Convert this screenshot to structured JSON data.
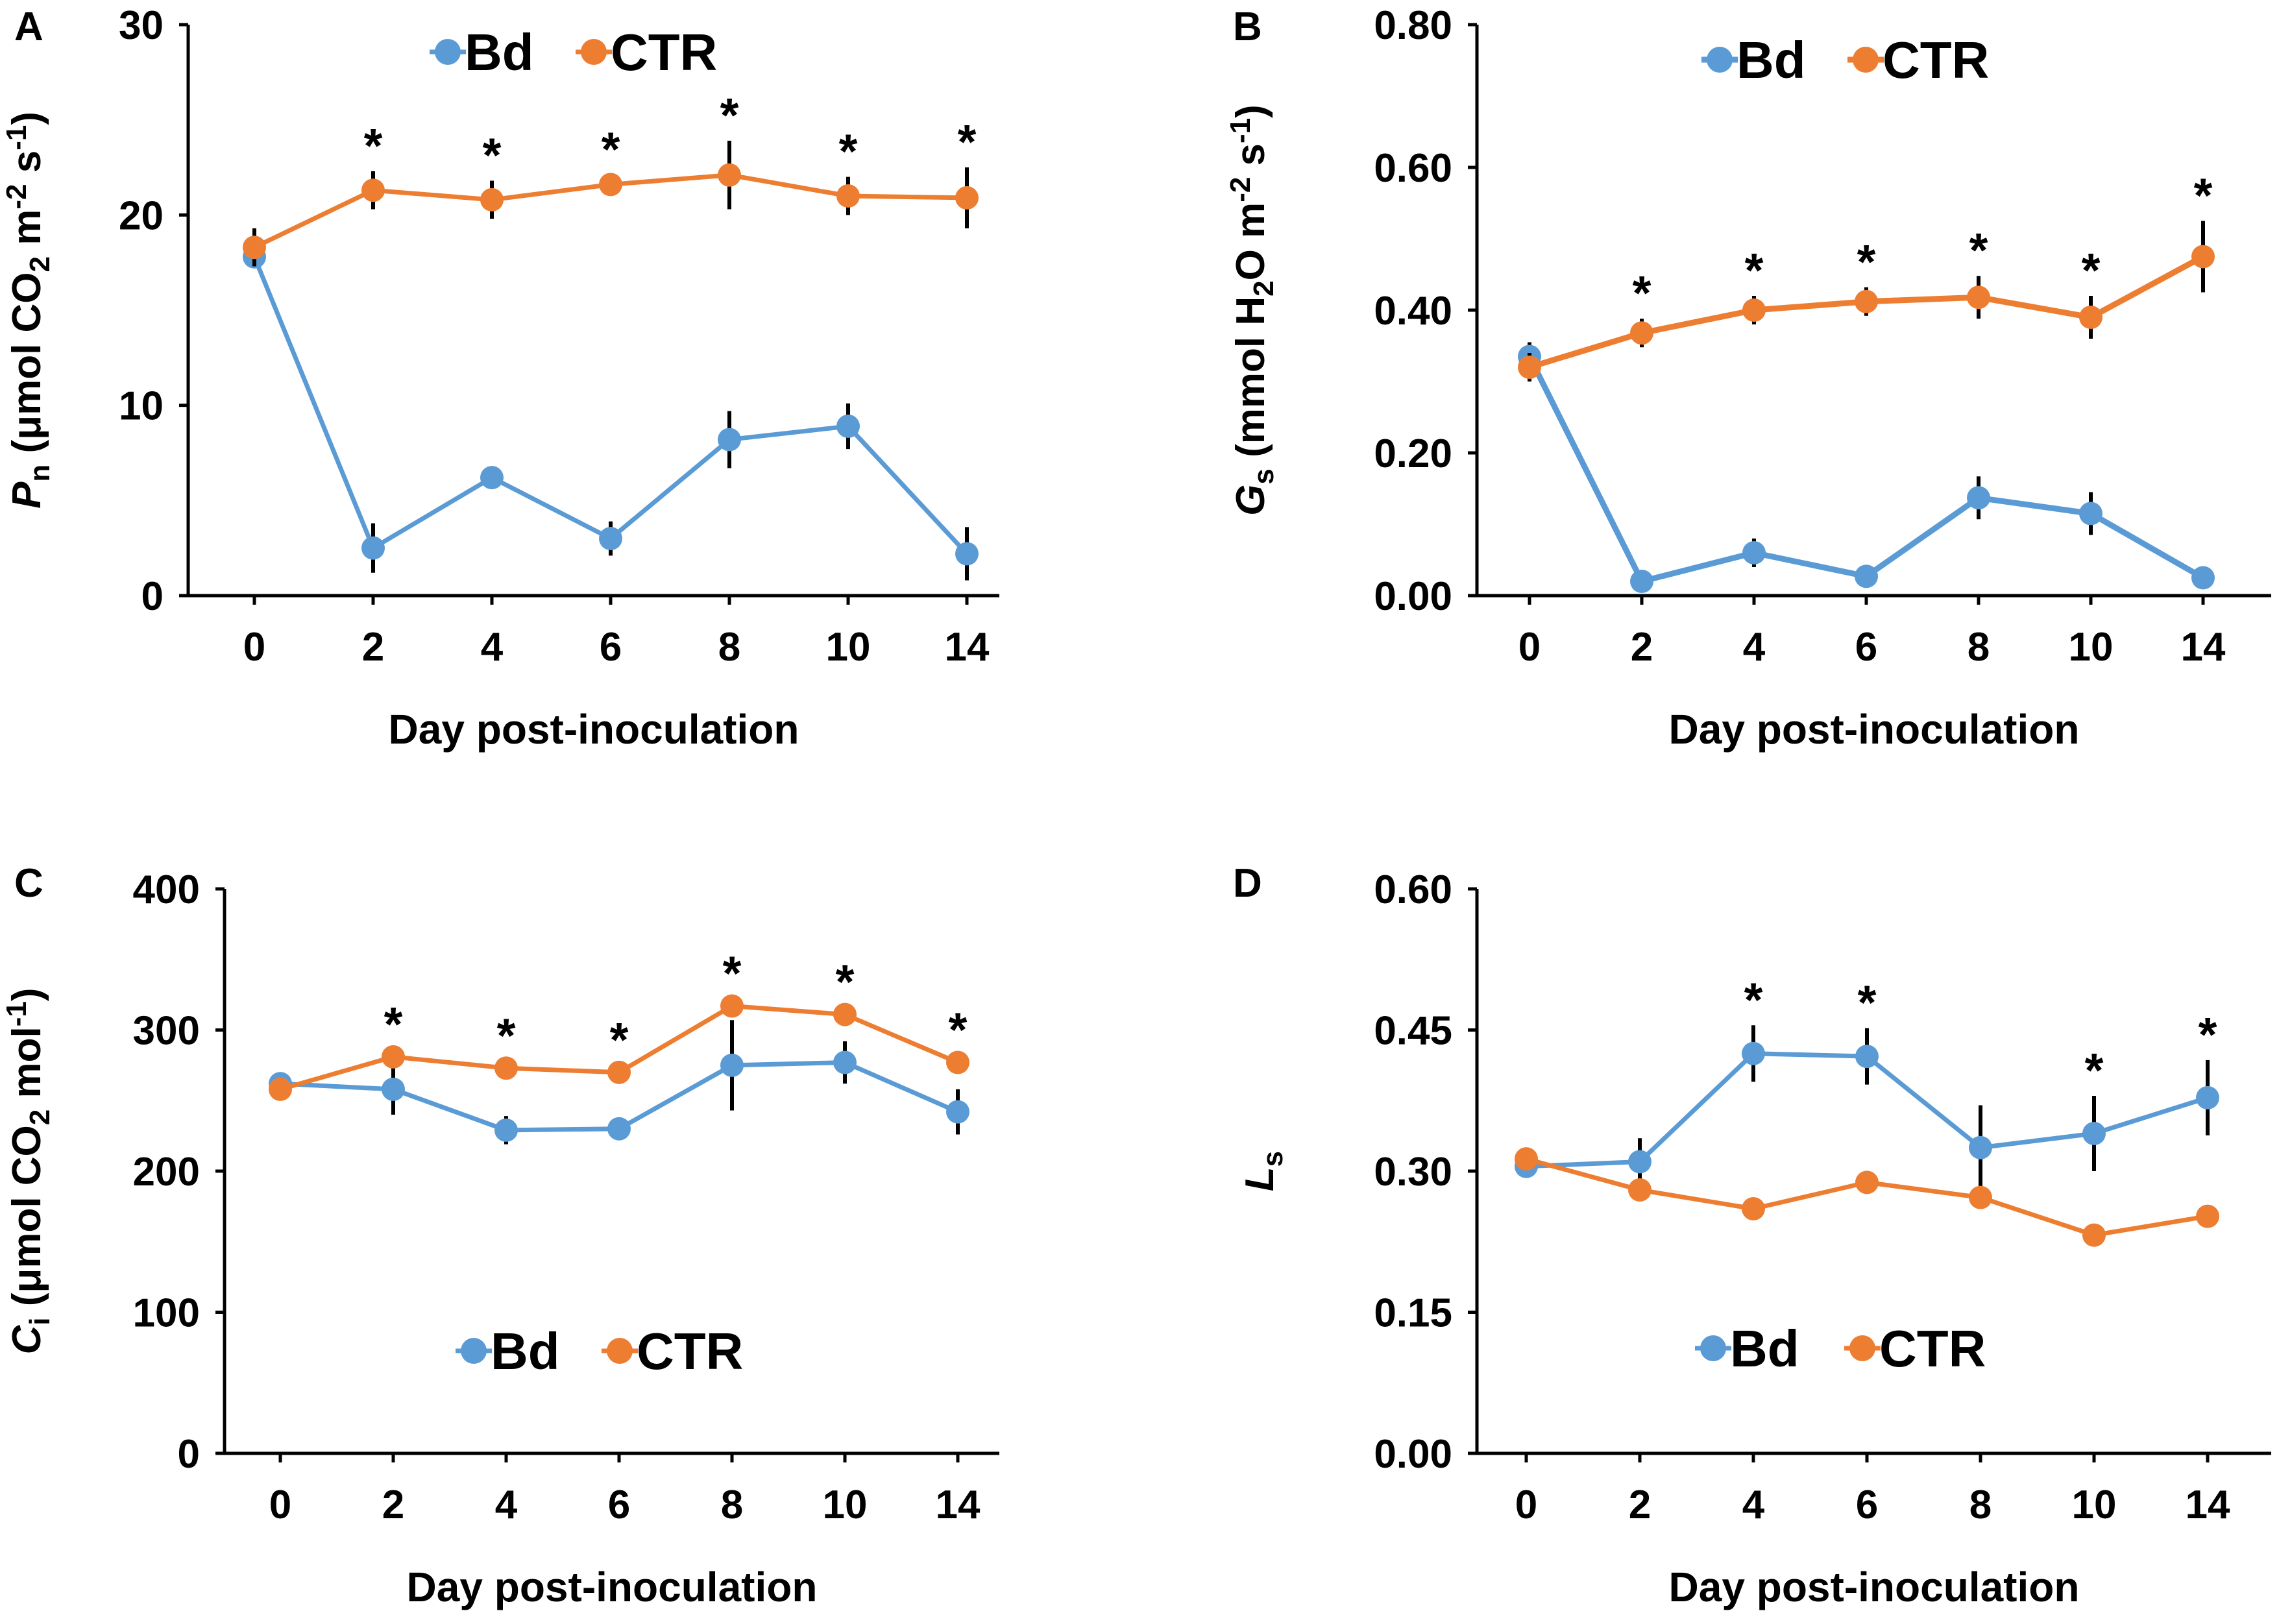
{
  "colors": {
    "bd": "#5b9bd5",
    "ctr": "#ed7d31",
    "axis": "#000000"
  },
  "chart_data": [
    {
      "panel_label": "A",
      "type": "line",
      "title": "",
      "categories": [
        "0",
        "2",
        "4",
        "6",
        "8",
        "10",
        "14"
      ],
      "xlabel": "Day post-inoculation",
      "ylabel": {
        "italic": "P",
        "sub": "n",
        "text": " (μmol CO",
        "sub2": "2",
        "text2": " m",
        "sup": "-2",
        "text3": " s",
        "sup2": "-1",
        "text4": ")"
      },
      "ylim": [
        0,
        30
      ],
      "yticks": [
        "0",
        "10",
        "20",
        "30"
      ],
      "legend": [
        "Bd",
        "CTR"
      ],
      "legend_position": "top",
      "series": [
        {
          "name": "Bd",
          "values": [
            17.8,
            2.5,
            6.2,
            3.0,
            8.2,
            8.9,
            2.2
          ],
          "errors": [
            0.6,
            1.3,
            0.5,
            0.9,
            1.5,
            1.2,
            1.4
          ]
        },
        {
          "name": "CTR",
          "values": [
            18.3,
            21.3,
            20.8,
            21.6,
            22.1,
            21.0,
            20.9
          ],
          "errors": [
            1.0,
            1.0,
            1.0,
            0.5,
            1.8,
            1.0,
            1.6
          ]
        }
      ],
      "significance": [
        "",
        "*",
        "*",
        "*",
        "*",
        "*",
        "*"
      ]
    },
    {
      "panel_label": "B",
      "type": "line",
      "title": "",
      "categories": [
        "0",
        "2",
        "4",
        "6",
        "8",
        "10",
        "14"
      ],
      "xlabel": "Day post-inoculation",
      "ylabel": {
        "italic": "G",
        "sub": "s",
        "text": " (mmol H",
        "sub2": "2",
        "text2": "O m",
        "sup": "-2",
        "text3": " s",
        "sup2": "-1",
        "text4": ")"
      },
      "ylim": [
        0,
        0.8
      ],
      "yticks": [
        "0.00",
        "0.20",
        "0.40",
        "0.60",
        "0.80"
      ],
      "legend": [
        "Bd",
        "CTR"
      ],
      "legend_position": "top",
      "series": [
        {
          "name": "Bd",
          "values": [
            0.335,
            0.02,
            0.06,
            0.027,
            0.137,
            0.115,
            0.025
          ],
          "errors": [
            0.02,
            0.01,
            0.02,
            0.01,
            0.03,
            0.03,
            0.01
          ]
        },
        {
          "name": "CTR",
          "values": [
            0.32,
            0.368,
            0.4,
            0.412,
            0.418,
            0.39,
            0.475
          ],
          "errors": [
            0.02,
            0.02,
            0.02,
            0.02,
            0.03,
            0.03,
            0.05
          ]
        }
      ],
      "significance": [
        "",
        "*",
        "*",
        "*",
        "*",
        "*",
        "*"
      ]
    },
    {
      "panel_label": "C",
      "type": "line",
      "title": "",
      "categories": [
        "0",
        "2",
        "4",
        "6",
        "8",
        "10",
        "14"
      ],
      "xlabel": "Day post-inoculation",
      "ylabel": {
        "italic": "C",
        "sub": "i",
        "text": " (μmol CO",
        "sub2": "2",
        "text2": " mol",
        "sup": "-1",
        "text3": ")",
        "sup2": "",
        "text4": ""
      },
      "ylim": [
        0,
        400
      ],
      "yticks": [
        "0",
        "100",
        "200",
        "300",
        "400"
      ],
      "legend": [
        "Bd",
        "CTR"
      ],
      "legend_position": "bottom",
      "series": [
        {
          "name": "Bd",
          "values": [
            262,
            258,
            229,
            230,
            275,
            277,
            242
          ],
          "errors": [
            5,
            18,
            10,
            5,
            32,
            15,
            16
          ]
        },
        {
          "name": "CTR",
          "values": [
            258,
            281,
            273,
            270,
            317,
            311,
            277
          ],
          "errors": [
            5,
            5,
            5,
            5,
            5,
            5,
            5
          ]
        }
      ],
      "significance": [
        "",
        "*",
        "*",
        "*",
        "*",
        "*",
        "*"
      ]
    },
    {
      "panel_label": "D",
      "type": "line",
      "title": "",
      "categories": [
        "0",
        "2",
        "4",
        "6",
        "8",
        "10",
        "14"
      ],
      "xlabel": "Day post-inoculation",
      "ylabel": {
        "italic": "L",
        "sub": "s",
        "text": "",
        "sub2": "",
        "text2": "",
        "sup": "",
        "text3": "",
        "sup2": "",
        "text4": ""
      },
      "ylim": [
        0,
        0.6
      ],
      "yticks": [
        "0.00",
        "0.15",
        "0.30",
        "0.45",
        "0.60"
      ],
      "legend": [
        "Bd",
        "CTR"
      ],
      "legend_position": "bottom",
      "series": [
        {
          "name": "Bd",
          "values": [
            0.305,
            0.31,
            0.425,
            0.422,
            0.325,
            0.34,
            0.378
          ],
          "errors": [
            0.01,
            0.025,
            0.03,
            0.03,
            0.045,
            0.04,
            0.04
          ]
        },
        {
          "name": "CTR",
          "values": [
            0.313,
            0.28,
            0.26,
            0.288,
            0.272,
            0.232,
            0.252
          ],
          "errors": [
            0.005,
            0.005,
            0.005,
            0.005,
            0.005,
            0.005,
            0.005
          ]
        }
      ],
      "significance": [
        "",
        "",
        "*",
        "*",
        "",
        "*",
        "*"
      ]
    }
  ]
}
